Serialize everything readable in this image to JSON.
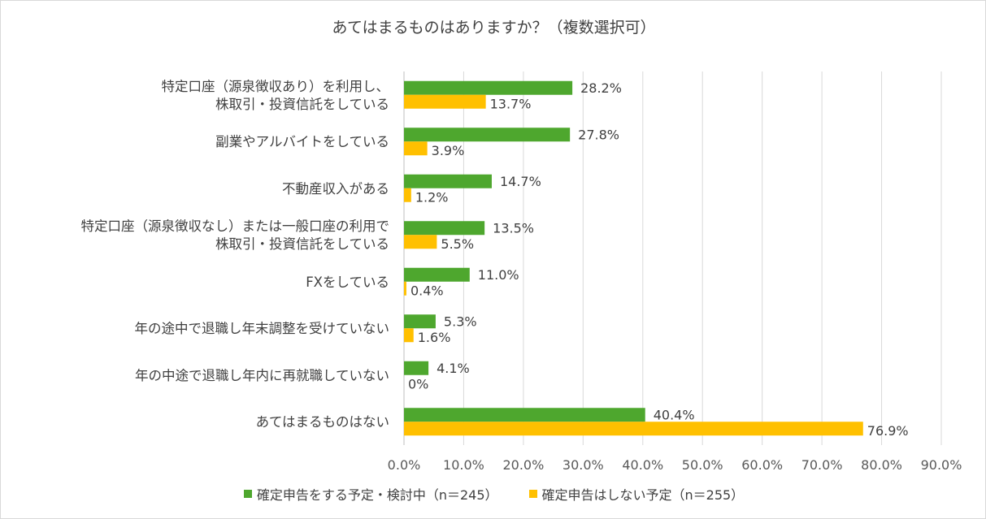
{
  "chart_data": {
    "type": "bar",
    "orientation": "horizontal",
    "title": "あてはまるものはありますか？（複数選択可）",
    "categories": [
      [
        "特定口座（源泉徴収あり）を利用し、",
        "株取引・投資信託をしている"
      ],
      [
        "副業やアルバイトをしている"
      ],
      [
        "不動産収入がある"
      ],
      [
        "特定口座（源泉徴収なし）または一般口座の利用で",
        "株取引・投資信託をしている"
      ],
      [
        "FXをしている"
      ],
      [
        "年の途中で退職し年末調整を受けていない"
      ],
      [
        "年の中途で退職し年内に再就職していない"
      ],
      [
        "あてはまるものはない"
      ]
    ],
    "series": [
      {
        "name": "確定申告をする予定・検討中（n＝245）",
        "color": "#4ea72e",
        "values": [
          28.2,
          27.8,
          14.7,
          13.5,
          11.0,
          5.3,
          4.1,
          40.4
        ],
        "labels": [
          "28.2%",
          "27.8%",
          "14.7%",
          "13.5%",
          "11.0%",
          "5.3%",
          "4.1%",
          "40.4%"
        ]
      },
      {
        "name": "確定申告はしない予定（n＝255）",
        "color": "#ffc000",
        "values": [
          13.7,
          3.9,
          1.2,
          5.5,
          0.4,
          1.6,
          0,
          76.9
        ],
        "labels": [
          "13.7%",
          "3.9%",
          "1.2%",
          "5.5%",
          "0.4%",
          "1.6%",
          "0%",
          "76.9%"
        ]
      }
    ],
    "xlim": [
      0,
      90
    ],
    "xticks": [
      "0.0%",
      "10.0%",
      "20.0%",
      "30.0%",
      "40.0%",
      "50.0%",
      "60.0%",
      "70.0%",
      "80.0%",
      "90.0%"
    ],
    "grid": true,
    "legend_position": "bottom"
  }
}
